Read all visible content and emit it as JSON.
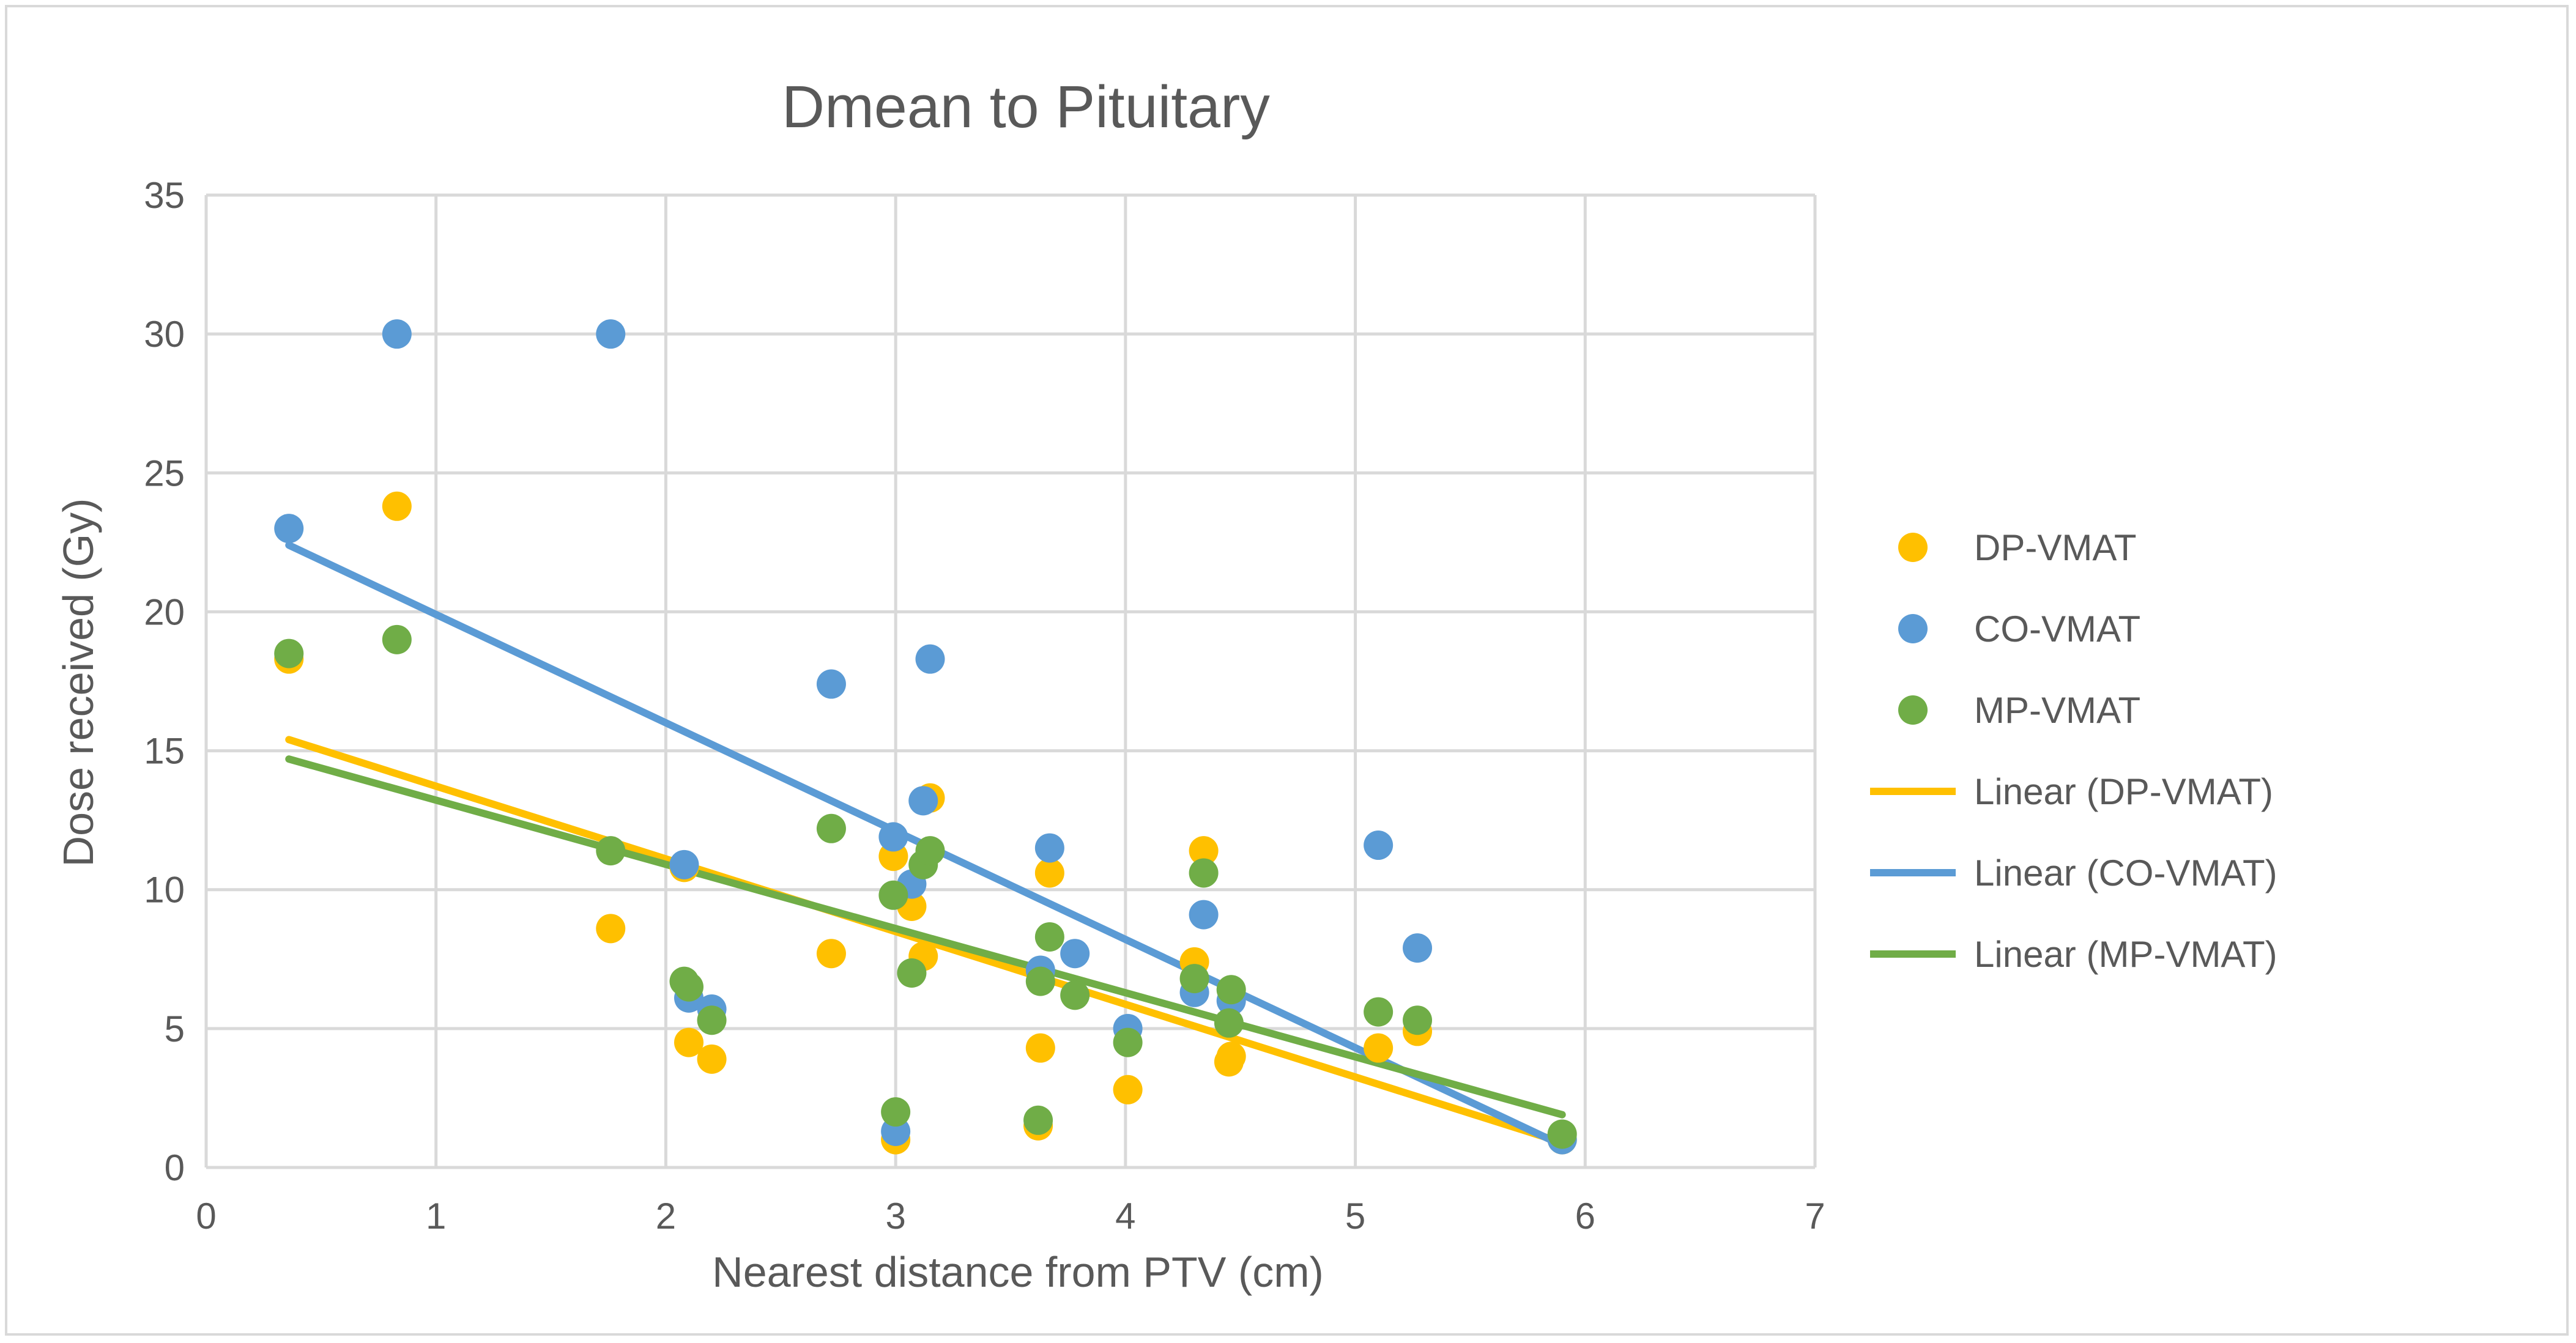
{
  "chart_data": {
    "type": "scatter",
    "title": "Dmean to Pituitary",
    "xlabel": "Nearest distance from PTV (cm)",
    "ylabel": "Dose received (Gy)",
    "xlim": [
      0,
      7
    ],
    "ylim": [
      0,
      35
    ],
    "xticks": [
      0,
      1,
      2,
      3,
      4,
      5,
      6,
      7
    ],
    "yticks": [
      0,
      5,
      10,
      15,
      20,
      25,
      30,
      35
    ],
    "grid": true,
    "legend_position": "right",
    "series": [
      {
        "name": "DP-VMAT",
        "color": "#FFC000",
        "points": [
          [
            0.36,
            18.3
          ],
          [
            0.83,
            23.8
          ],
          [
            1.76,
            8.6
          ],
          [
            2.08,
            10.8
          ],
          [
            2.1,
            4.5
          ],
          [
            2.2,
            3.9
          ],
          [
            2.72,
            7.7
          ],
          [
            2.99,
            11.2
          ],
          [
            3.0,
            1.0
          ],
          [
            3.07,
            9.4
          ],
          [
            3.12,
            7.6
          ],
          [
            3.15,
            13.3
          ],
          [
            3.62,
            1.5
          ],
          [
            3.63,
            4.3
          ],
          [
            3.67,
            10.6
          ],
          [
            4.01,
            2.8
          ],
          [
            4.3,
            7.4
          ],
          [
            4.34,
            11.4
          ],
          [
            4.45,
            3.8
          ],
          [
            4.46,
            4.0
          ],
          [
            5.1,
            4.3
          ],
          [
            5.27,
            4.9
          ],
          [
            5.9,
            1.0
          ]
        ]
      },
      {
        "name": "CO-VMAT",
        "color": "#5B9BD5",
        "points": [
          [
            0.36,
            23.0
          ],
          [
            0.83,
            30.0
          ],
          [
            1.76,
            30.0
          ],
          [
            2.08,
            10.9
          ],
          [
            2.1,
            6.1
          ],
          [
            2.2,
            5.7
          ],
          [
            2.72,
            17.4
          ],
          [
            2.99,
            11.9
          ],
          [
            3.0,
            1.3
          ],
          [
            3.07,
            10.2
          ],
          [
            3.12,
            13.2
          ],
          [
            3.15,
            18.3
          ],
          [
            3.63,
            7.1
          ],
          [
            3.67,
            11.5
          ],
          [
            3.78,
            7.7
          ],
          [
            4.01,
            5.0
          ],
          [
            4.3,
            6.3
          ],
          [
            4.34,
            9.1
          ],
          [
            4.46,
            6.0
          ],
          [
            5.1,
            11.6
          ],
          [
            5.27,
            7.9
          ],
          [
            5.9,
            1.0
          ]
        ]
      },
      {
        "name": "MP-VMAT",
        "color": "#70AD47",
        "points": [
          [
            0.36,
            18.5
          ],
          [
            0.83,
            19.0
          ],
          [
            1.76,
            11.4
          ],
          [
            2.08,
            6.7
          ],
          [
            2.1,
            6.5
          ],
          [
            2.2,
            5.3
          ],
          [
            2.72,
            12.2
          ],
          [
            2.99,
            9.8
          ],
          [
            3.0,
            2.0
          ],
          [
            3.07,
            7.0
          ],
          [
            3.12,
            10.9
          ],
          [
            3.15,
            11.4
          ],
          [
            3.62,
            1.7
          ],
          [
            3.63,
            6.7
          ],
          [
            3.67,
            8.3
          ],
          [
            3.78,
            6.2
          ],
          [
            4.01,
            4.5
          ],
          [
            4.3,
            6.8
          ],
          [
            4.34,
            10.6
          ],
          [
            4.45,
            5.2
          ],
          [
            4.46,
            6.4
          ],
          [
            5.1,
            5.6
          ],
          [
            5.27,
            5.3
          ],
          [
            5.9,
            1.2
          ]
        ]
      }
    ],
    "trendlines": [
      {
        "name": "Linear (DP-VMAT)",
        "color": "#FFC000",
        "x": [
          0.36,
          5.9
        ],
        "y": [
          15.4,
          0.9
        ]
      },
      {
        "name": "Linear (CO-VMAT)",
        "color": "#5B9BD5",
        "x": [
          0.36,
          5.9
        ],
        "y": [
          22.4,
          0.8
        ]
      },
      {
        "name": "Linear (MP-VMAT)",
        "color": "#70AD47",
        "x": [
          0.36,
          5.9
        ],
        "y": [
          14.7,
          1.9
        ]
      }
    ]
  }
}
